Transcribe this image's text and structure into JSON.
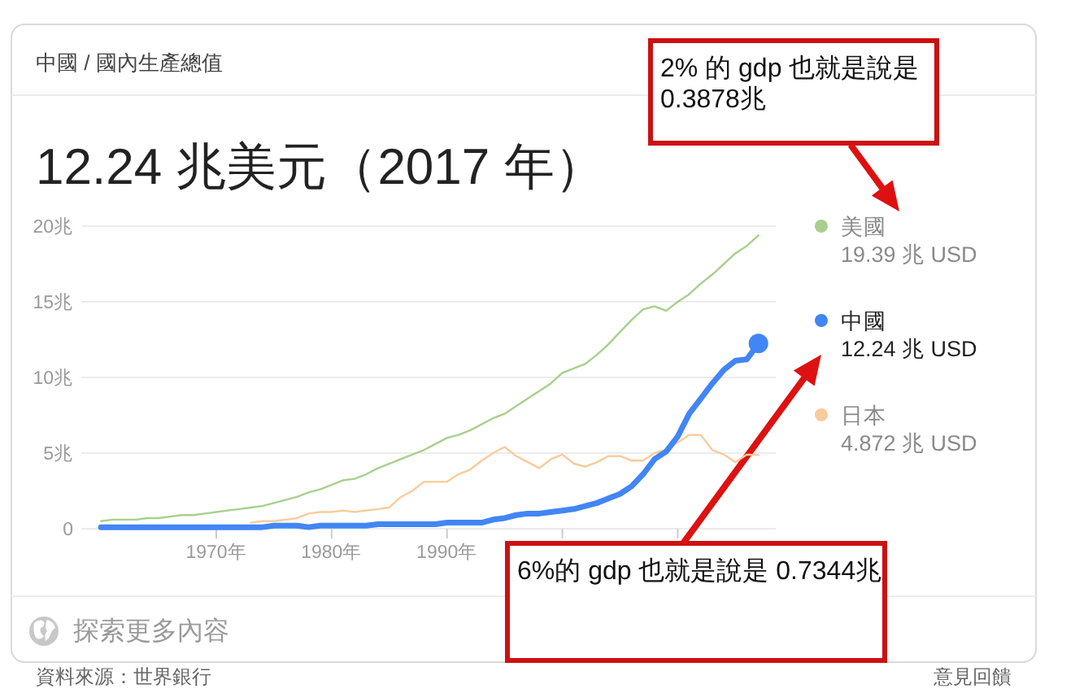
{
  "chart_data": {
    "type": "line",
    "title": "中國 / 國內生產總值",
    "subtitle": "12.24 兆美元（2017 年）",
    "x": [
      1960,
      1961,
      1962,
      1963,
      1964,
      1965,
      1966,
      1967,
      1968,
      1969,
      1970,
      1971,
      1972,
      1973,
      1974,
      1975,
      1976,
      1977,
      1978,
      1979,
      1980,
      1981,
      1982,
      1983,
      1984,
      1985,
      1986,
      1987,
      1988,
      1989,
      1990,
      1991,
      1992,
      1993,
      1994,
      1995,
      1996,
      1997,
      1998,
      1999,
      2000,
      2001,
      2002,
      2003,
      2004,
      2005,
      2006,
      2007,
      2008,
      2009,
      2010,
      2011,
      2012,
      2013,
      2014,
      2015,
      2016,
      2017
    ],
    "series": [
      {
        "name": "美國",
        "color": "#a8d08d",
        "values": [
          0.5,
          0.6,
          0.6,
          0.6,
          0.7,
          0.7,
          0.8,
          0.9,
          0.9,
          1.0,
          1.1,
          1.2,
          1.3,
          1.4,
          1.5,
          1.7,
          1.9,
          2.1,
          2.4,
          2.6,
          2.9,
          3.2,
          3.3,
          3.6,
          4.0,
          4.3,
          4.6,
          4.9,
          5.2,
          5.6,
          6.0,
          6.2,
          6.5,
          6.9,
          7.3,
          7.6,
          8.1,
          8.6,
          9.1,
          9.6,
          10.3,
          10.6,
          10.9,
          11.5,
          12.2,
          13.0,
          13.8,
          14.5,
          14.7,
          14.4,
          15.0,
          15.5,
          16.2,
          16.8,
          17.5,
          18.2,
          18.7,
          19.39
        ]
      },
      {
        "name": "中國",
        "color": "#4285f4",
        "values": [
          0.1,
          0.1,
          0.1,
          0.1,
          0.1,
          0.1,
          0.1,
          0.1,
          0.1,
          0.1,
          0.1,
          0.1,
          0.1,
          0.1,
          0.1,
          0.2,
          0.2,
          0.2,
          0.1,
          0.2,
          0.2,
          0.2,
          0.2,
          0.2,
          0.3,
          0.3,
          0.3,
          0.3,
          0.3,
          0.3,
          0.4,
          0.4,
          0.4,
          0.4,
          0.6,
          0.7,
          0.9,
          1.0,
          1.0,
          1.1,
          1.2,
          1.3,
          1.5,
          1.7,
          2.0,
          2.3,
          2.8,
          3.6,
          4.6,
          5.1,
          6.1,
          7.6,
          8.6,
          9.6,
          10.5,
          11.1,
          11.2,
          12.24
        ]
      },
      {
        "name": "日本",
        "color": "#f9cb9c",
        "values": [
          null,
          null,
          null,
          null,
          null,
          null,
          null,
          null,
          null,
          null,
          null,
          null,
          null,
          0.4,
          0.5,
          0.5,
          0.6,
          0.7,
          1.0,
          1.1,
          1.1,
          1.2,
          1.1,
          1.2,
          1.3,
          1.4,
          2.1,
          2.5,
          3.1,
          3.1,
          3.1,
          3.6,
          3.9,
          4.5,
          5.0,
          5.4,
          4.8,
          4.4,
          4.0,
          4.6,
          4.9,
          4.3,
          4.1,
          4.4,
          4.8,
          4.8,
          4.5,
          4.5,
          5.0,
          5.2,
          5.7,
          6.2,
          6.2,
          5.2,
          4.9,
          4.4,
          4.9,
          4.872
        ]
      },
      {
        "type": "scatter",
        "color": "#4285f4",
        "marker": "circle",
        "x": [
          2017
        ],
        "values": [
          12.24
        ]
      }
    ],
    "xlim": [
      1958.3,
      2018.5
    ],
    "xticks": [
      {
        "value": 1970,
        "label": "1970年"
      },
      {
        "value": 1980,
        "label": "1980年"
      },
      {
        "value": 1990,
        "label": "1990年"
      },
      {
        "value": 2000,
        "label": null
      },
      {
        "value": 2010,
        "label": null
      }
    ],
    "ylim": [
      0,
      20
    ],
    "yticks": [
      0,
      {
        "value": 5,
        "label": "5兆"
      },
      {
        "value": 10,
        "label": "10兆"
      },
      {
        "value": 15,
        "label": "15兆"
      },
      {
        "value": 20,
        "label": "20兆"
      }
    ],
    "grid": "y",
    "legend": "right",
    "annotations": [
      "2% 的 gdp 也就是說是\n0.3878兆",
      "6%的 gdp 也就是說是 0.7344兆",
      "探索更多內容",
      "資料來源：世界銀行",
      "意見回饋",
      "19.39 兆 USD",
      "12.24 兆 USD",
      "4.872 兆 USD"
    ]
  }
}
